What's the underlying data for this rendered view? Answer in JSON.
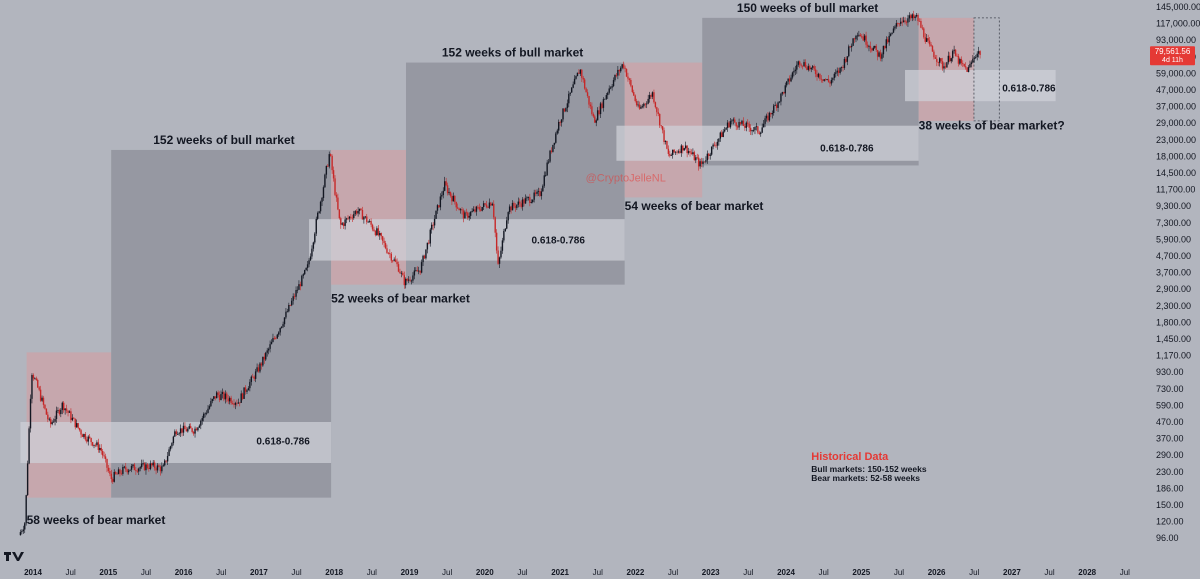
{
  "chart_data": {
    "type": "candlestick",
    "title": "",
    "watermark": "@CryptoJelleNL",
    "y_scale": "log",
    "ylim": [
      90,
      145000
    ],
    "y_ticks": [
      "145,000.00",
      "117,000.00",
      "93,000.00",
      "75,000.00",
      "59,000.00",
      "47,000.00",
      "37,000.00",
      "29,000.00",
      "23,000.00",
      "18,000.00",
      "14,500.00",
      "11,700.00",
      "9,300.00",
      "7,300.00",
      "5,900.00",
      "4,700.00",
      "3,700.00",
      "2,900.00",
      "2,300.00",
      "1,800.00",
      "1,450.00",
      "1,170.00",
      "930.00",
      "730.00",
      "590.00",
      "470.00",
      "370.00",
      "290.00",
      "230.00",
      "186.00",
      "150.00",
      "120.00",
      "96.00"
    ],
    "x_ticks": [
      {
        "label": "2014",
        "year": true
      },
      {
        "label": "Jul",
        "year": false
      },
      {
        "label": "2015",
        "year": true
      },
      {
        "label": "Jul",
        "year": false
      },
      {
        "label": "2016",
        "year": true
      },
      {
        "label": "Jul",
        "year": false
      },
      {
        "label": "2017",
        "year": true
      },
      {
        "label": "Jul",
        "year": false
      },
      {
        "label": "2018",
        "year": true
      },
      {
        "label": "Jul",
        "year": false
      },
      {
        "label": "2019",
        "year": true
      },
      {
        "label": "Jul",
        "year": false
      },
      {
        "label": "2020",
        "year": true
      },
      {
        "label": "Jul",
        "year": false
      },
      {
        "label": "2021",
        "year": true
      },
      {
        "label": "Jul",
        "year": false
      },
      {
        "label": "2022",
        "year": true
      },
      {
        "label": "Jul",
        "year": false
      },
      {
        "label": "2023",
        "year": true
      },
      {
        "label": "Jul",
        "year": false
      },
      {
        "label": "2024",
        "year": true
      },
      {
        "label": "Jul",
        "year": false
      },
      {
        "label": "2025",
        "year": true
      },
      {
        "label": "Jul",
        "year": false
      },
      {
        "label": "2026",
        "year": true
      },
      {
        "label": "Jul",
        "year": false
      },
      {
        "label": "2027",
        "year": true
      },
      {
        "label": "Jul",
        "year": false
      },
      {
        "label": "2028",
        "year": true
      },
      {
        "label": "Jul",
        "year": false
      }
    ],
    "current_price": {
      "label": "79,561.56",
      "sub": "4d 11h",
      "value": 79561.56
    },
    "price_path": [
      [
        "2013-11-01",
        100
      ],
      [
        "2013-12-01",
        120
      ],
      [
        "2014-01-01",
        950
      ],
      [
        "2014-04-01",
        450
      ],
      [
        "2014-06-01",
        600
      ],
      [
        "2014-09-01",
        400
      ],
      [
        "2014-12-01",
        320
      ],
      [
        "2015-01-20",
        210
      ],
      [
        "2015-04-01",
        240
      ],
      [
        "2015-08-01",
        250
      ],
      [
        "2015-10-01",
        240
      ],
      [
        "2015-12-01",
        420
      ],
      [
        "2016-03-01",
        420
      ],
      [
        "2016-06-15",
        680
      ],
      [
        "2016-10-01",
        620
      ],
      [
        "2017-01-01",
        950
      ],
      [
        "2017-05-01",
        1800
      ],
      [
        "2017-09-01",
        4000
      ],
      [
        "2017-12-17",
        19000
      ],
      [
        "2018-02-06",
        7000
      ],
      [
        "2018-05-01",
        8800
      ],
      [
        "2018-08-01",
        6500
      ],
      [
        "2018-11-15",
        4000
      ],
      [
        "2018-12-15",
        3200
      ],
      [
        "2019-03-01",
        3900
      ],
      [
        "2019-06-26",
        12500
      ],
      [
        "2019-10-01",
        8000
      ],
      [
        "2020-02-15",
        10000
      ],
      [
        "2020-03-12",
        4000
      ],
      [
        "2020-05-01",
        9000
      ],
      [
        "2020-10-01",
        11000
      ],
      [
        "2021-01-01",
        29000
      ],
      [
        "2021-04-14",
        63000
      ],
      [
        "2021-06-22",
        30000
      ],
      [
        "2021-09-01",
        48000
      ],
      [
        "2021-11-10",
        68000
      ],
      [
        "2022-01-24",
        35000
      ],
      [
        "2022-04-01",
        45000
      ],
      [
        "2022-06-18",
        18000
      ],
      [
        "2022-09-01",
        21000
      ],
      [
        "2022-11-21",
        16000
      ],
      [
        "2023-04-14",
        30000
      ],
      [
        "2023-09-01",
        26000
      ],
      [
        "2023-12-01",
        40000
      ],
      [
        "2024-03-14",
        71000
      ],
      [
        "2024-08-05",
        52000
      ],
      [
        "2024-10-01",
        63000
      ],
      [
        "2024-12-17",
        106000
      ],
      [
        "2025-04-07",
        76000
      ],
      [
        "2025-07-14",
        123000
      ],
      [
        "2025-10-06",
        126000
      ],
      [
        "2025-12-01",
        86000
      ],
      [
        "2026-02-10",
        65000
      ],
      [
        "2026-03-28",
        80000
      ],
      [
        "2026-05-10",
        66000
      ],
      [
        "2026-06-10",
        62000
      ],
      [
        "2026-07-15",
        78000
      ],
      [
        "2026-08-05",
        79561
      ]
    ],
    "cycles": [
      {
        "kind": "bear",
        "label": "58 weeks of bear market",
        "x0": "2013-12-01",
        "x1": "2015-01-15",
        "y0": 165,
        "y1": 1220
      },
      {
        "kind": "bull",
        "label": "152 weeks of bull market",
        "x0": "2015-01-15",
        "x1": "2017-12-17",
        "y0": 165,
        "y1": 19800
      },
      {
        "kind": "fib",
        "label": "0.618-0.786",
        "x0": "2013-11-01",
        "x1": "2017-12-17",
        "y0": 260,
        "y1": 470
      },
      {
        "kind": "bear",
        "label": "52 weeks of bear market",
        "x0": "2017-12-17",
        "x1": "2018-12-15",
        "y0": 3100,
        "y1": 19800
      },
      {
        "kind": "bull",
        "label": "152 weeks of bull market",
        "x0": "2018-12-15",
        "x1": "2021-11-10",
        "y0": 3100,
        "y1": 69000
      },
      {
        "kind": "fib",
        "label": "0.618-0.786",
        "x0": "2017-09-01",
        "x1": "2021-11-10",
        "y0": 4400,
        "y1": 7700
      },
      {
        "kind": "bear",
        "label": "54 weeks of bear market",
        "x0": "2021-11-10",
        "x1": "2022-11-21",
        "y0": 10500,
        "y1": 69000
      },
      {
        "kind": "bull",
        "label": "150 weeks of bull market",
        "x0": "2022-11-21",
        "x1": "2025-10-06",
        "y0": 16000,
        "y1": 126000
      },
      {
        "kind": "fib",
        "label": "0.618-0.786",
        "x0": "2021-10-01",
        "x1": "2025-10-06",
        "y0": 17000,
        "y1": 28000
      },
      {
        "kind": "bear",
        "label": "38 weeks of bear market?",
        "x0": "2025-10-06",
        "x1": "2026-07-01",
        "y0": 30000,
        "y1": 126000
      },
      {
        "kind": "fib",
        "label": "0.618-0.786",
        "x0": "2025-08-01",
        "x1": "2027-08-01",
        "y0": 40000,
        "y1": 62000
      }
    ],
    "legend": {
      "title": "Historical Data",
      "lines": [
        "Bull markets: 150-152 weeks",
        "Bear markets: 52-58 weeks"
      ]
    },
    "colors": {
      "background": "#b2b5be",
      "bull": "#8c8f98",
      "bear": "#c9a5aa",
      "fib": "#ced1d8",
      "up": "#131722",
      "down": "#c62828",
      "accent": "#e53935"
    }
  }
}
